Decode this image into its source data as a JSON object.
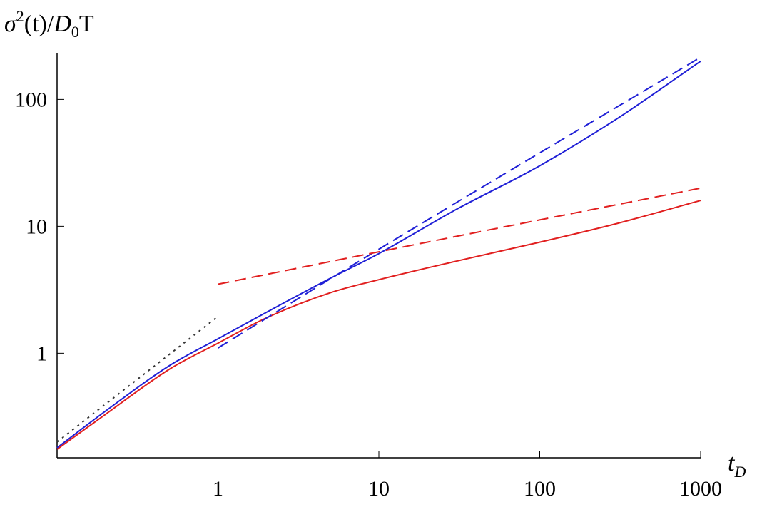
{
  "chart_data": {
    "type": "line",
    "title": "",
    "scale": {
      "x": "log",
      "y": "log"
    },
    "xlim": [
      0.1,
      1000
    ],
    "ylim": [
      0.15,
      230
    ],
    "grid": false,
    "legend": "none",
    "ylabel": {
      "base": "σ",
      "sup": "2",
      "mid": "(t)/",
      "d": "D",
      "sub": "0",
      "tail": "T"
    },
    "xlabel": {
      "base": "t",
      "sub": "D"
    },
    "x_ticks": [
      {
        "value": 1,
        "label": "1"
      },
      {
        "value": 10,
        "label": "10"
      },
      {
        "value": 100,
        "label": "100"
      },
      {
        "value": 1000,
        "label": "1000"
      }
    ],
    "y_ticks": [
      {
        "value": 1,
        "label": "1"
      },
      {
        "value": 10,
        "label": "10"
      },
      {
        "value": 100,
        "label": "100"
      }
    ],
    "series": [
      {
        "style": "solid",
        "color": "#1f1fd6",
        "x": [
          0.1,
          0.2,
          0.5,
          1,
          2,
          5,
          10,
          30,
          100,
          300,
          1000
        ],
        "y": [
          0.18,
          0.35,
          0.8,
          1.3,
          2.1,
          3.9,
          6.1,
          13.5,
          30,
          70,
          200
        ]
      },
      {
        "style": "solid",
        "color": "#e11f1f",
        "x": [
          0.1,
          0.2,
          0.5,
          1,
          2,
          5,
          10,
          30,
          100,
          300,
          1000
        ],
        "y": [
          0.175,
          0.33,
          0.75,
          1.2,
          1.9,
          3.0,
          3.8,
          5.3,
          7.5,
          10.5,
          16
        ]
      },
      {
        "style": "dashed",
        "color": "#1f1fd6",
        "x": [
          1,
          10,
          1000
        ],
        "y": [
          1.1,
          6.6,
          215
        ]
      },
      {
        "style": "dashed",
        "color": "#e11f1f",
        "x": [
          1,
          10,
          1000
        ],
        "y": [
          3.5,
          6.3,
          20
        ]
      },
      {
        "style": "dotted",
        "color": "#333333",
        "x": [
          0.1,
          1
        ],
        "y": [
          0.2,
          1.95
        ]
      }
    ]
  }
}
